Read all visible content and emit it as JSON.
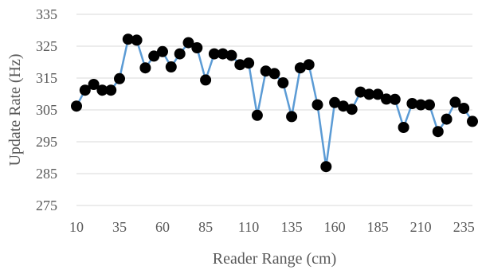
{
  "chart_data": {
    "type": "line",
    "title": "",
    "xlabel": "Reader Range (cm)",
    "ylabel": "Update Rate (Hz)",
    "xlim": [
      10,
      240
    ],
    "ylim": [
      275,
      335
    ],
    "x_ticks": [
      "10",
      "35",
      "60",
      "85",
      "110",
      "135",
      "160",
      "185",
      "210",
      "235"
    ],
    "y_ticks": [
      "275",
      "285",
      "295",
      "305",
      "315",
      "325",
      "335"
    ],
    "grid": true,
    "legend": "none",
    "series": [
      {
        "color": "#5b9bd5",
        "marker_color": "#000000",
        "x": [
          10,
          15,
          20,
          25,
          30,
          35,
          40,
          45,
          50,
          55,
          60,
          65,
          70,
          75,
          80,
          85,
          90,
          95,
          100,
          105,
          110,
          115,
          120,
          125,
          130,
          135,
          140,
          145,
          150,
          155,
          160,
          165,
          170,
          175,
          180,
          185,
          190,
          195,
          200,
          205,
          210,
          215,
          220,
          225,
          230,
          235,
          240
        ],
        "y": [
          306.2,
          311.2,
          313.0,
          311.2,
          311.2,
          314.8,
          327.2,
          326.9,
          318.2,
          321.9,
          323.3,
          318.5,
          322.6,
          326.1,
          324.5,
          314.4,
          322.6,
          322.6,
          322.1,
          319.2,
          319.7,
          303.3,
          317.2,
          316.4,
          313.5,
          302.9,
          318.2,
          319.2,
          306.6,
          287.2,
          307.3,
          306.2,
          305.2,
          310.6,
          309.9,
          309.9,
          308.4,
          308.3,
          299.5,
          307.0,
          306.6,
          306.6,
          298.2,
          302.1,
          307.4,
          305.5,
          301.4
        ]
      }
    ]
  }
}
